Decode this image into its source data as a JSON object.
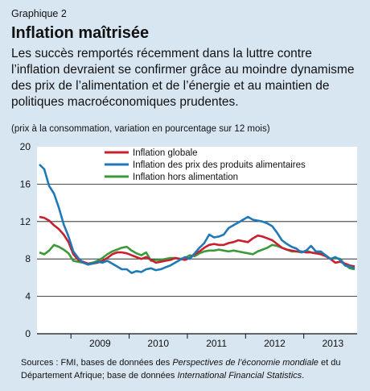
{
  "label": "Graphique 2",
  "title": "Inflation maîtrisée",
  "lead": "Les succès remportés récemment dans la luttre contre l’inflation devraient se confirmer grâce au moindre dynamisme des prix de l’alimentation et de l’énergie et au maintien de politiques macroéconomiques prudentes.",
  "subtitle": "(prix à la consommation, variation en pourcentage sur 12 mois)",
  "source": {
    "prefix": "Sources : FMI, bases de données des ",
    "italic1": "Perspectives de l’économie mondiale",
    "middle": " et du Département Afrique; base de données ",
    "italic2": "International Financial Statistics",
    "suffix": "."
  },
  "colors": {
    "globale": "#c8202f",
    "alimentaire": "#1f79b9",
    "hors": "#3a9a3a",
    "background": "#d8e6f2"
  },
  "chart_data": {
    "type": "line",
    "x_start": "2008-06",
    "x_end": "2013-05",
    "x_tick_labels": [
      "2009",
      "2010",
      "2011",
      "2012",
      "2013"
    ],
    "ylim": [
      0,
      20
    ],
    "y_ticks": [
      0,
      4,
      8,
      12,
      16,
      20
    ],
    "legend_placement": "top",
    "series": [
      {
        "name": "Inflation globale",
        "color": "#c8202f",
        "values": [
          12.5,
          12.4,
          12.1,
          11.6,
          11.2,
          10.6,
          9.8,
          8.5,
          7.9,
          7.7,
          7.5,
          7.5,
          7.6,
          7.8,
          8.1,
          8.5,
          8.7,
          8.7,
          8.6,
          8.4,
          8.2,
          8.0,
          8.2,
          7.9,
          7.6,
          7.7,
          7.8,
          7.9,
          8.1,
          8.0,
          7.9,
          8.1,
          8.5,
          8.8,
          9.2,
          9.5,
          9.6,
          9.5,
          9.5,
          9.7,
          9.8,
          10.0,
          9.9,
          9.8,
          10.2,
          10.5,
          10.4,
          10.2,
          10.0,
          9.6,
          9.2,
          9.0,
          8.9,
          8.8,
          8.8,
          8.7,
          8.7,
          8.6,
          8.5,
          8.3,
          8.0,
          7.6,
          7.7,
          7.5,
          7.3,
          7.2
        ]
      },
      {
        "name": "Inflation des prix des produits alimentaires",
        "color": "#1f79b9",
        "values": [
          18.1,
          17.6,
          15.8,
          15.0,
          13.5,
          11.7,
          10.4,
          8.8,
          8.1,
          7.6,
          7.4,
          7.5,
          7.7,
          7.6,
          7.8,
          7.5,
          7.2,
          6.9,
          6.9,
          6.5,
          6.7,
          6.6,
          6.9,
          7.0,
          6.8,
          6.9,
          7.1,
          7.3,
          7.6,
          7.9,
          8.2,
          8.0,
          8.6,
          9.2,
          9.7,
          10.6,
          10.3,
          10.4,
          10.6,
          11.3,
          11.6,
          11.9,
          12.2,
          12.5,
          12.2,
          12.1,
          12.0,
          11.8,
          11.5,
          10.8,
          10.0,
          9.6,
          9.3,
          9.1,
          8.7,
          8.9,
          9.4,
          8.8,
          8.8,
          8.4,
          8.0,
          8.2,
          7.9,
          7.3,
          7.2,
          7.0
        ]
      },
      {
        "name": "Inflation hors alimentation",
        "color": "#3a9a3a",
        "values": [
          8.7,
          8.5,
          8.9,
          9.5,
          9.3,
          9.0,
          8.6,
          7.8,
          7.7,
          7.6,
          7.5,
          7.6,
          7.8,
          8.1,
          8.5,
          8.8,
          9.0,
          9.2,
          9.3,
          8.9,
          8.6,
          8.4,
          8.7,
          7.8,
          7.9,
          7.9,
          8.0,
          8.1,
          8.1,
          8.0,
          8.1,
          8.4,
          8.3,
          8.6,
          8.8,
          8.9,
          8.9,
          9.0,
          8.9,
          8.8,
          8.9,
          8.8,
          8.7,
          8.6,
          8.5,
          8.8,
          9.0,
          9.2,
          9.5,
          9.4,
          9.2,
          9.0,
          8.8,
          8.8,
          8.7,
          8.9,
          8.7,
          8.6,
          8.6,
          8.4,
          8.0,
          8.1,
          8.0,
          7.4,
          7.0,
          6.9
        ]
      }
    ]
  }
}
